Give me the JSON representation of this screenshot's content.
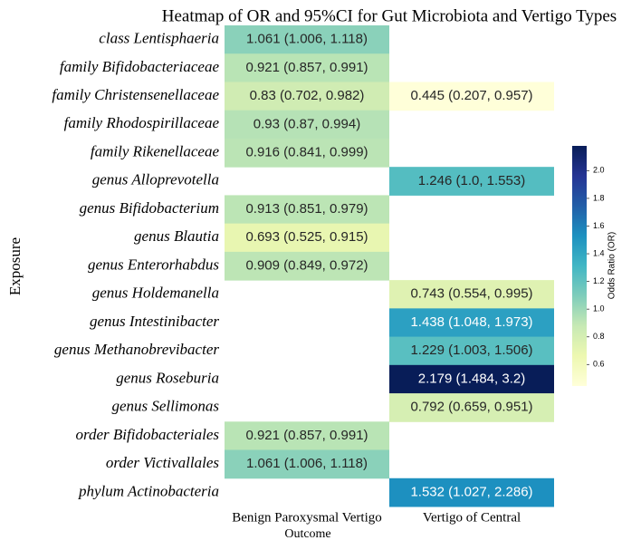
{
  "chart_data": {
    "type": "heatmap",
    "title": "Heatmap of OR and 95%CI for Gut Microbiota and Vertigo Types",
    "xlabel": "Outcome",
    "ylabel": "Exposure",
    "columns": [
      "Benign Paroxysmal Vertigo",
      "Vertigo of Central"
    ],
    "rows": [
      "class Lentisphaeria",
      "family Bifidobacteriaceae",
      "family Christensenellaceae",
      "family Rhodospirillaceae",
      "family Rikenellaceae",
      "genus Alloprevotella",
      "genus Bifidobacterium",
      "genus Blautia",
      "genus Enterorhabdus",
      "genus Holdemanella",
      "genus Intestinibacter",
      "genus Methanobrevibacter",
      "genus Roseburia",
      "genus Sellimonas",
      "order Bifidobacteriales",
      "order Victivallales",
      "phylum Actinobacteria"
    ],
    "values": [
      [
        1.061,
        null
      ],
      [
        0.921,
        null
      ],
      [
        0.83,
        0.445
      ],
      [
        0.93,
        null
      ],
      [
        0.916,
        null
      ],
      [
        null,
        1.246
      ],
      [
        0.913,
        null
      ],
      [
        0.693,
        null
      ],
      [
        0.909,
        null
      ],
      [
        null,
        0.743
      ],
      [
        null,
        1.438
      ],
      [
        null,
        1.229
      ],
      [
        null,
        2.179
      ],
      [
        null,
        0.792
      ],
      [
        0.921,
        null
      ],
      [
        1.061,
        null
      ],
      [
        null,
        1.532
      ]
    ],
    "value_labels": [
      [
        "1.061 (1.006, 1.118)",
        null
      ],
      [
        "0.921 (0.857, 0.991)",
        null
      ],
      [
        "0.83 (0.702, 0.982)",
        "0.445 (0.207, 0.957)"
      ],
      [
        "0.93 (0.87, 0.994)",
        null
      ],
      [
        "0.916 (0.841, 0.999)",
        null
      ],
      [
        null,
        "1.246 (1.0, 1.553)"
      ],
      [
        "0.913 (0.851, 0.979)",
        null
      ],
      [
        "0.693 (0.525, 0.915)",
        null
      ],
      [
        "0.909 (0.849, 0.972)",
        null
      ],
      [
        null,
        "0.743 (0.554, 0.995)"
      ],
      [
        null,
        "1.438 (1.048, 1.973)"
      ],
      [
        null,
        "1.229 (1.003, 1.506)"
      ],
      [
        null,
        "2.179 (1.484, 3.2)"
      ],
      [
        null,
        "0.792 (0.659, 0.951)"
      ],
      [
        "0.921 (0.857, 0.991)",
        null
      ],
      [
        "1.061 (1.006, 1.118)",
        null
      ],
      [
        null,
        "1.532 (1.027, 2.286)"
      ]
    ],
    "colorbar_label": "Odds Ratio (OR)",
    "clim": [
      0.445,
      2.179
    ],
    "cticks": [
      0.6,
      0.8,
      {
        "value": 1,
        "label": "1.0"
      },
      1.2,
      1.4,
      1.6,
      1.8,
      {
        "value": 2,
        "label": "2.0"
      }
    ],
    "colors": [
      "#ffffd9",
      "#edf8b1",
      "#c7e9b4",
      "#7fcdbb",
      "#41b6c4",
      "#1d91c0",
      "#225ea8",
      "#253494",
      "#081d58"
    ]
  }
}
